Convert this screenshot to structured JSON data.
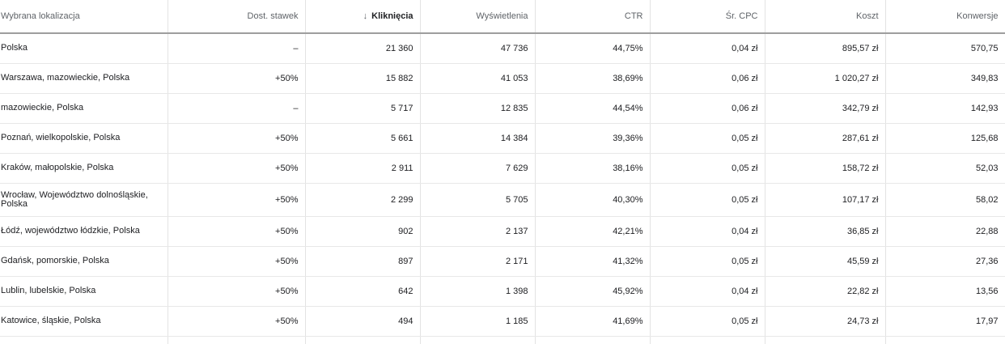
{
  "columns": {
    "location": "Wybrana lokalizacja",
    "bid_adj": "Dost. stawek",
    "clicks": "Kliknięcia",
    "impressions": "Wyświetlenia",
    "ctr": "CTR",
    "avg_cpc": "Śr. CPC",
    "cost": "Koszt",
    "conversions": "Konwersje"
  },
  "sort": {
    "column": "clicks",
    "direction": "descending",
    "icon": "arrow-down-icon",
    "icon_glyph": "↓"
  },
  "rows": [
    {
      "location": "Polska",
      "bid_adj": "–",
      "clicks": "21 360",
      "impressions": "47 736",
      "ctr": "44,75%",
      "avg_cpc": "0,04 zł",
      "cost": "895,57 zł",
      "conversions": "570,75"
    },
    {
      "location": "Warszawa, mazowieckie, Polska",
      "bid_adj": "+50%",
      "clicks": "15 882",
      "impressions": "41 053",
      "ctr": "38,69%",
      "avg_cpc": "0,06 zł",
      "cost": "1 020,27 zł",
      "conversions": "349,83"
    },
    {
      "location": "mazowieckie, Polska",
      "bid_adj": "–",
      "clicks": "5 717",
      "impressions": "12 835",
      "ctr": "44,54%",
      "avg_cpc": "0,06 zł",
      "cost": "342,79 zł",
      "conversions": "142,93"
    },
    {
      "location": "Poznań, wielkopolskie, Polska",
      "bid_adj": "+50%",
      "clicks": "5 661",
      "impressions": "14 384",
      "ctr": "39,36%",
      "avg_cpc": "0,05 zł",
      "cost": "287,61 zł",
      "conversions": "125,68"
    },
    {
      "location": "Kraków, małopolskie, Polska",
      "bid_adj": "+50%",
      "clicks": "2 911",
      "impressions": "7 629",
      "ctr": "38,16%",
      "avg_cpc": "0,05 zł",
      "cost": "158,72 zł",
      "conversions": "52,03"
    },
    {
      "location": "Wrocław, Województwo dolnośląskie, Polska",
      "bid_adj": "+50%",
      "clicks": "2 299",
      "impressions": "5 705",
      "ctr": "40,30%",
      "avg_cpc": "0,05 zł",
      "cost": "107,17 zł",
      "conversions": "58,02"
    },
    {
      "location": "Łódź, województwo łódzkie, Polska",
      "bid_adj": "+50%",
      "clicks": "902",
      "impressions": "2 137",
      "ctr": "42,21%",
      "avg_cpc": "0,04 zł",
      "cost": "36,85 zł",
      "conversions": "22,88"
    },
    {
      "location": "Gdańsk, pomorskie, Polska",
      "bid_adj": "+50%",
      "clicks": "897",
      "impressions": "2 171",
      "ctr": "41,32%",
      "avg_cpc": "0,05 zł",
      "cost": "45,59 zł",
      "conversions": "27,36"
    },
    {
      "location": "Lublin, lubelskie, Polska",
      "bid_adj": "+50%",
      "clicks": "642",
      "impressions": "1 398",
      "ctr": "45,92%",
      "avg_cpc": "0,04 zł",
      "cost": "22,82 zł",
      "conversions": "13,56"
    },
    {
      "location": "Katowice, śląskie, Polska",
      "bid_adj": "+50%",
      "clicks": "494",
      "impressions": "1 185",
      "ctr": "41,69%",
      "avg_cpc": "0,05 zł",
      "cost": "24,73 zł",
      "conversions": "17,97"
    }
  ]
}
